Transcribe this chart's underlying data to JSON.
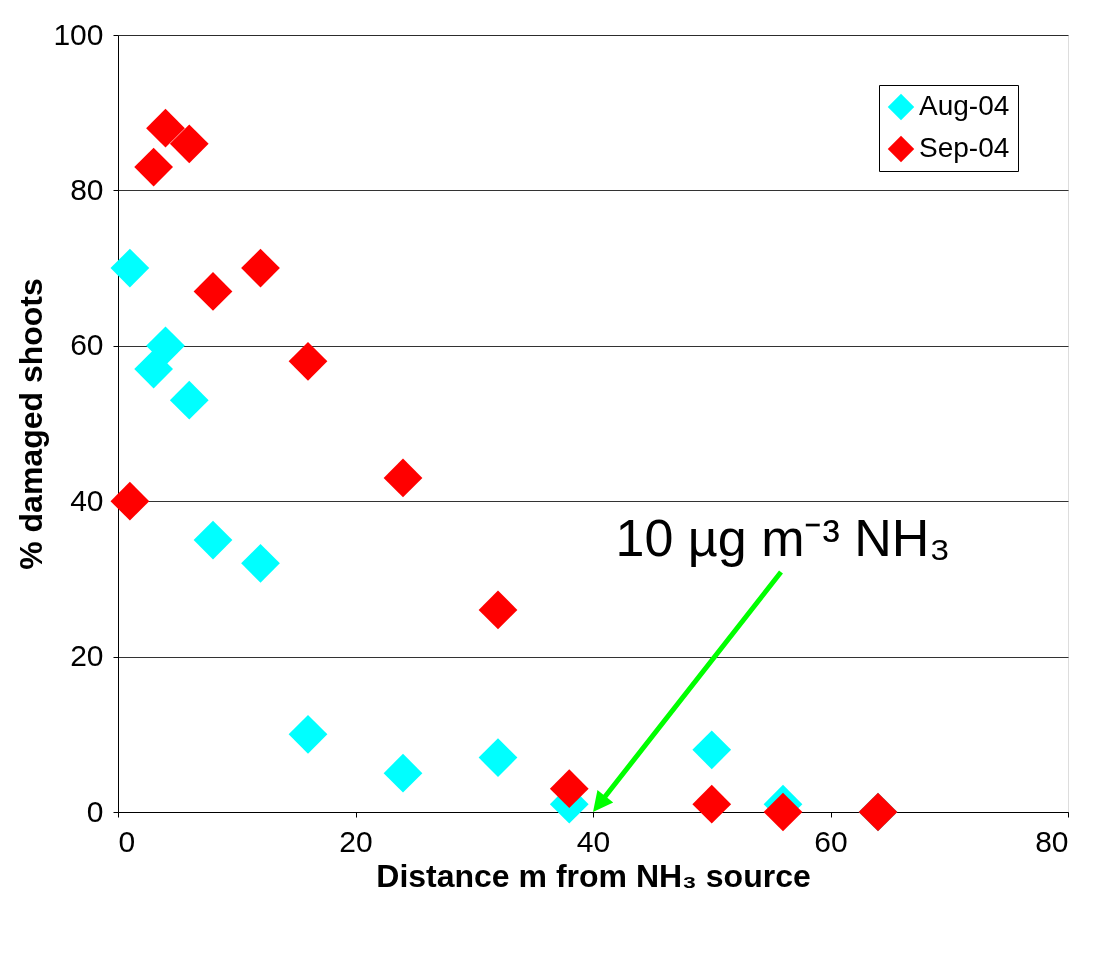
{
  "chart_data": {
    "type": "scatter",
    "xlabel": "Distance m from NH₃ source",
    "ylabel": "% damaged shoots",
    "xlim": [
      0,
      80
    ],
    "xticks": [
      0,
      20,
      40,
      60,
      80
    ],
    "ylim": [
      0,
      100
    ],
    "yticks": [
      0,
      20,
      40,
      60,
      80,
      100
    ],
    "grid": "y",
    "legend": "top right",
    "marker": "diamond",
    "series": [
      {
        "name": "Aug-04",
        "color": "#00ffff",
        "x": [
          1,
          3,
          4,
          6,
          8,
          12,
          16,
          24,
          32,
          38,
          50,
          56,
          64
        ],
        "values": [
          70,
          57,
          60,
          53,
          35,
          32,
          10,
          5,
          7,
          1,
          8,
          1,
          0
        ]
      },
      {
        "name": "Sep-04",
        "color": "#ff0000",
        "x": [
          1,
          3,
          4,
          6,
          8,
          12,
          16,
          24,
          32,
          38,
          50,
          56,
          64
        ],
        "values": [
          40,
          83,
          88,
          86,
          67,
          70,
          58,
          43,
          26,
          3,
          1,
          0,
          0
        ]
      }
    ],
    "annotations": [
      "10 µg m⁻³ NH₃"
    ]
  }
}
